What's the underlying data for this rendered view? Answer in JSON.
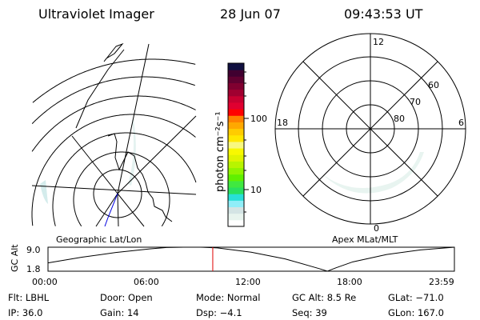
{
  "header": {
    "instrument": "Ultraviolet Imager",
    "date": "28 Jun 07",
    "time": "09:43:53 UT"
  },
  "colorbar": {
    "unit_label": "photon cm⁻²s⁻¹",
    "tick_labels": [
      "100",
      "10"
    ],
    "colors": [
      "#ffffff",
      "#e8f4ee",
      "#d4e4e4",
      "#90eef8",
      "#28e0d8",
      "#28e060",
      "#40e840",
      "#60f000",
      "#90f400",
      "#b8f400",
      "#e0f400",
      "#f8f800",
      "#f8f880",
      "#ffe800",
      "#ffcc00",
      "#ffa800",
      "#ff8000",
      "#ff0000",
      "#e00030",
      "#c80030",
      "#a00030",
      "#800030",
      "#600030",
      "#400030",
      "#101040"
    ]
  },
  "left_panel": {
    "caption": "Geographic Lat/Lon"
  },
  "right_panel": {
    "caption": "Apex MLat/MLT",
    "mlt_labels": [
      "12",
      "18",
      "6",
      "0"
    ],
    "lat_labels": [
      "60",
      "70",
      "80"
    ]
  },
  "chart_data": {
    "type": "line",
    "ylabel": "GC Alt",
    "yticks": [
      "9.0",
      "1.8"
    ],
    "ylim": [
      1.8,
      9.0
    ],
    "xticks": [
      "00:00",
      "06:00",
      "12:00",
      "18:00",
      "23:59"
    ],
    "x_hours": [
      0,
      2,
      4,
      6,
      7,
      8,
      9,
      10,
      12,
      14,
      16,
      16.5,
      17,
      18,
      20,
      22,
      24
    ],
    "values": [
      4.3,
      6.0,
      7.4,
      8.5,
      8.9,
      9.0,
      9.0,
      8.8,
      7.5,
      5.5,
      2.6,
      1.8,
      2.8,
      4.6,
      6.8,
      8.2,
      9.0
    ],
    "current_time_hours": 9.73,
    "current_marker_color": "#e00000"
  },
  "info": {
    "row1": [
      "Flt: LBHL",
      "Door: Open",
      "Mode: Normal",
      "GC Alt: 8.5 Re",
      "GLat: −71.0"
    ],
    "row2": [
      "IP: 36.0",
      "Gain: 14",
      "Dsp:    −4.1",
      "Seq: 39",
      "GLon: 167.0"
    ]
  }
}
